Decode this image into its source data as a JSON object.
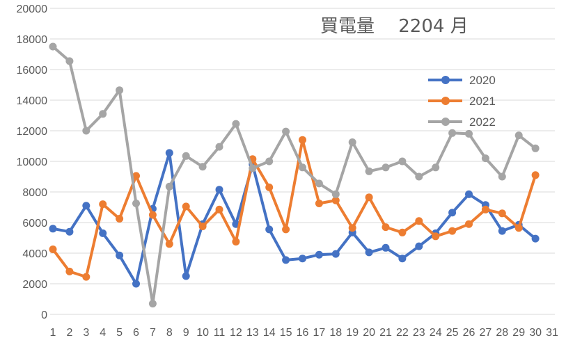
{
  "chart_data": {
    "type": "line",
    "title": "買電量　 2204 月",
    "xlabel": "",
    "ylabel": "",
    "x": [
      1,
      2,
      3,
      4,
      5,
      6,
      7,
      8,
      9,
      10,
      11,
      12,
      13,
      14,
      15,
      16,
      17,
      18,
      19,
      20,
      21,
      22,
      23,
      24,
      25,
      26,
      27,
      28,
      29,
      30
    ],
    "x_ticks": [
      "1",
      "2",
      "3",
      "4",
      "5",
      "6",
      "7",
      "8",
      "9",
      "10",
      "11",
      "12",
      "13",
      "14",
      "15",
      "16",
      "17",
      "18",
      "19",
      "20",
      "21",
      "22",
      "23",
      "24",
      "25",
      "26",
      "27",
      "28",
      "29",
      "30",
      "31"
    ],
    "y_ticks": [
      "0",
      "2000",
      "4000",
      "6000",
      "8000",
      "10000",
      "12000",
      "14000",
      "16000",
      "18000",
      "20000"
    ],
    "ylim": [
      0,
      20000
    ],
    "xlim": [
      1,
      31
    ],
    "grid": "horizontal",
    "legend_position": "right",
    "series": [
      {
        "name": "2020",
        "color": "#4472C4",
        "values": [
          5600,
          5400,
          7100,
          5300,
          3850,
          2000,
          6900,
          10550,
          2500,
          5900,
          8150,
          5900,
          9800,
          5550,
          3550,
          3650,
          3900,
          3950,
          5350,
          4050,
          4350,
          3650,
          4450,
          5300,
          6650,
          7850,
          7150,
          5450,
          5850,
          4950
        ]
      },
      {
        "name": "2021",
        "color": "#ED7D31",
        "values": [
          4250,
          2800,
          2450,
          7200,
          6250,
          9050,
          6500,
          4600,
          7050,
          5750,
          6850,
          4750,
          10150,
          8300,
          5550,
          11400,
          7250,
          7450,
          5650,
          7650,
          5700,
          5350,
          6100,
          5100,
          5450,
          5900,
          6850,
          6600,
          5650,
          9100
        ]
      },
      {
        "name": "2022",
        "color": "#A5A5A5",
        "values": [
          17500,
          16550,
          12000,
          13100,
          14650,
          7250,
          700,
          8350,
          10350,
          9650,
          10950,
          12450,
          9550,
          10000,
          11950,
          9600,
          8550,
          7850,
          11250,
          9350,
          9600,
          10000,
          9000,
          9600,
          11850,
          11800,
          10200,
          9000,
          11700,
          10850
        ]
      }
    ]
  }
}
